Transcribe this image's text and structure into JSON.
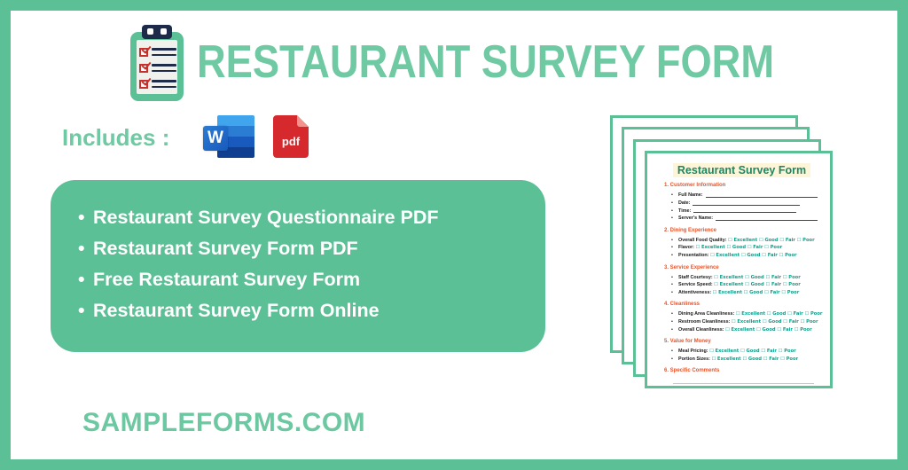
{
  "colors": {
    "green": "#5BC096",
    "title_green": "#6FC9A3",
    "brand_green": "#6CC8A1",
    "doc_orange": "#E8542B",
    "doc_teal": "#0CA18C",
    "doc_title_green": "#1F8663",
    "doc_highlight": "#FCF5D8",
    "pdf_red": "#D6292D",
    "pdf_fold": "#F4938C",
    "word_blue_light": "#41A5EE",
    "word_blue": "#2B7CD3",
    "word_blue_dark": "#185ABD",
    "word_blue_darker": "#103F91"
  },
  "icons": {
    "clipboard": "clipboard-with-red-checkboxes",
    "word": "microsoft-word-file",
    "pdf": "pdf-file"
  },
  "header": {
    "title": "RESTAURANT SURVEY FORM"
  },
  "includes": {
    "label": "Includes :",
    "word_label": "W",
    "pdf_label": "pdf"
  },
  "highlights": [
    "Restaurant Survey Questionnaire PDF",
    "Restaurant Survey Form PDF",
    "Free Restaurant Survey Form",
    "Restaurant Survey Form Online"
  ],
  "footer": {
    "website": "SAMPLEFORMS.COM"
  },
  "preview": {
    "page_count": 4,
    "document": {
      "title": "Restaurant Survey Form",
      "checkbox_glyph": "☐",
      "rating_options": [
        "Excellent",
        "Good",
        "Fair",
        "Poor"
      ],
      "sections": [
        {
          "heading": "1. Customer Information",
          "type": "fields",
          "fields": [
            "Full Name:",
            "Date:",
            "Time:",
            "Server's Name:"
          ]
        },
        {
          "heading": "2. Dining Experience",
          "type": "ratings",
          "labels": [
            "Overall Food Quality:",
            "Flavor:",
            "Presentation:"
          ]
        },
        {
          "heading": "3. Service Experience",
          "type": "ratings",
          "labels": [
            "Staff Courtesy:",
            "Service Speed:",
            "Attentiveness:"
          ]
        },
        {
          "heading": "4. Cleanliness",
          "type": "ratings",
          "labels": [
            "Dining Area Cleanliness:",
            "Restroom Cleanliness:",
            "Overall Cleanliness:"
          ]
        },
        {
          "heading": "5. Value for Money",
          "type": "ratings",
          "labels": [
            "Meal Pricing:",
            "Portion Sizes:"
          ]
        },
        {
          "heading": "6. Specific Comments",
          "type": "comments"
        }
      ]
    }
  }
}
